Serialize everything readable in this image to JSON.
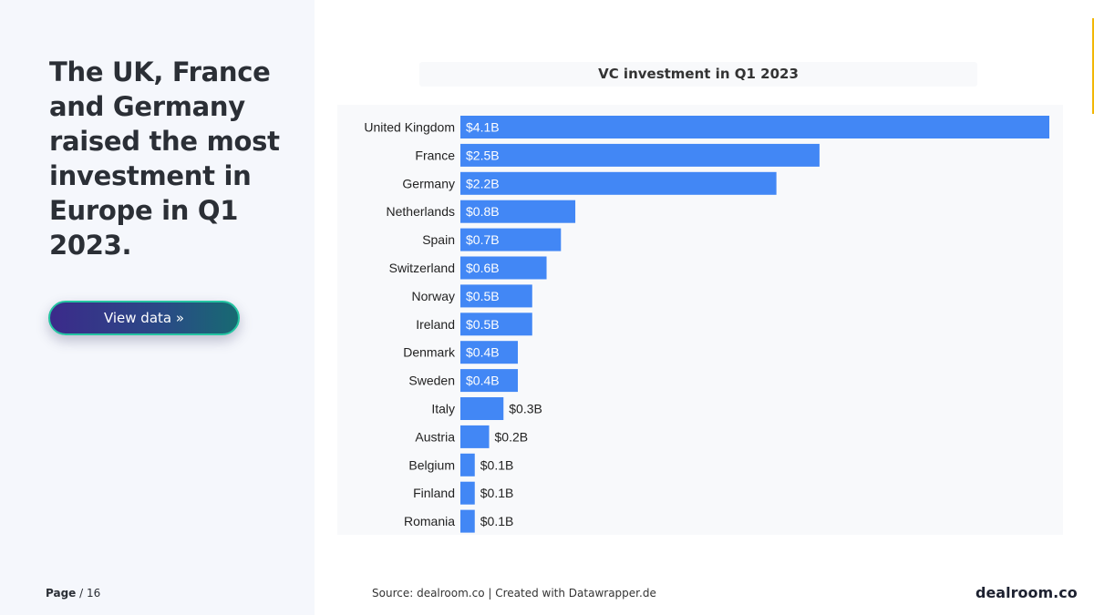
{
  "headline": "The UK, France and Germany raised the most investment in Europe in Q1 2023.",
  "view_button": "View data »",
  "page": {
    "label": "Page",
    "total": "/ 16"
  },
  "source": "Source: dealroom.co | Created with Datawrapper.de",
  "brand": "dealroom.co",
  "colors": {
    "bar": "#4287f5",
    "accent": "#f2b705",
    "text": "#2b2f36"
  },
  "chart_data": {
    "type": "bar",
    "orientation": "horizontal",
    "title": "VC investment in Q1 2023",
    "xlabel": "",
    "ylabel": "",
    "unit": "$B",
    "xlim": [
      0,
      4.1
    ],
    "categories": [
      "United Kingdom",
      "France",
      "Germany",
      "Netherlands",
      "Spain",
      "Switzerland",
      "Norway",
      "Ireland",
      "Denmark",
      "Sweden",
      "Italy",
      "Austria",
      "Belgium",
      "Finland",
      "Romania"
    ],
    "values": [
      4.1,
      2.5,
      2.2,
      0.8,
      0.7,
      0.6,
      0.5,
      0.5,
      0.4,
      0.4,
      0.3,
      0.2,
      0.1,
      0.1,
      0.1
    ],
    "labels": [
      "$4.1B",
      "$2.5B",
      "$2.2B",
      "$0.8B",
      "$0.7B",
      "$0.6B",
      "$0.5B",
      "$0.5B",
      "$0.4B",
      "$0.4B",
      "$0.3B",
      "$0.2B",
      "$0.1B",
      "$0.1B",
      "$0.1B"
    ]
  }
}
